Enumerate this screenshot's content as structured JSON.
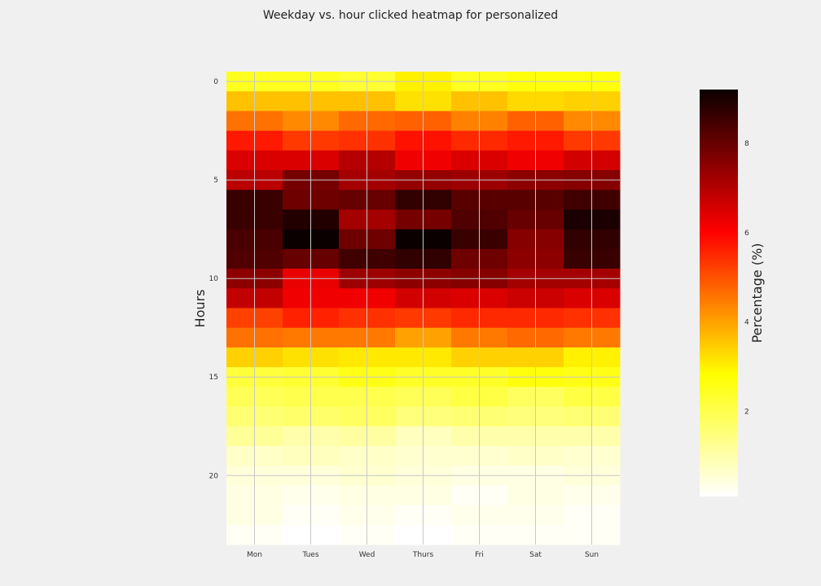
{
  "chart_data": {
    "type": "heatmap",
    "title": "Weekday vs. hour clicked heatmap for personalized",
    "xlabel": "",
    "ylabel": "Hours",
    "colorbar_label": "Percentage (%)",
    "colormap": "hot_r",
    "x_categories": [
      "Mon",
      "Tues",
      "Wed",
      "Thurs",
      "Fri",
      "Sat",
      "Sun"
    ],
    "y_tick_labels": [
      "0",
      "5",
      "10",
      "15",
      "20"
    ],
    "y_tick_values": [
      0,
      5,
      10,
      15,
      20
    ],
    "colorbar_ticks": [
      "2",
      "4",
      "6",
      "8"
    ],
    "colorbar_tick_values": [
      2,
      4,
      6,
      8
    ],
    "vmin": 0.1,
    "vmax": 9.2,
    "grid": true,
    "hours": [
      0,
      1,
      2,
      3,
      4,
      5,
      6,
      7,
      8,
      9,
      10,
      11,
      12,
      13,
      14,
      15,
      16,
      17,
      18,
      19,
      20,
      21,
      22,
      23
    ],
    "values": [
      [
        2.5,
        2.5,
        2.3,
        3.0,
        2.5,
        2.7,
        2.7
      ],
      [
        3.6,
        3.6,
        3.6,
        3.2,
        3.6,
        3.3,
        3.4
      ],
      [
        4.6,
        4.3,
        4.7,
        4.8,
        4.4,
        4.8,
        4.3
      ],
      [
        5.7,
        5.3,
        5.4,
        5.8,
        5.5,
        5.7,
        5.3
      ],
      [
        6.5,
        6.5,
        7.0,
        6.2,
        6.5,
        6.2,
        6.6
      ],
      [
        6.9,
        7.8,
        7.2,
        7.4,
        7.3,
        7.5,
        7.6
      ],
      [
        8.6,
        7.9,
        8.0,
        8.7,
        8.2,
        8.2,
        8.5
      ],
      [
        8.6,
        8.9,
        7.2,
        7.8,
        8.3,
        8.0,
        9.0
      ],
      [
        8.4,
        9.2,
        7.9,
        9.2,
        8.6,
        7.6,
        8.7
      ],
      [
        8.3,
        8.0,
        8.5,
        8.7,
        7.9,
        7.5,
        8.6
      ],
      [
        7.5,
        6.3,
        7.3,
        7.5,
        7.6,
        7.2,
        7.2
      ],
      [
        6.8,
        6.2,
        6.2,
        6.6,
        6.5,
        6.7,
        6.5
      ],
      [
        5.2,
        5.6,
        5.4,
        5.3,
        5.5,
        5.5,
        5.4
      ],
      [
        4.6,
        4.5,
        4.5,
        4.0,
        4.5,
        4.7,
        4.5
      ],
      [
        3.4,
        3.2,
        3.1,
        3.1,
        3.4,
        3.4,
        3.0
      ],
      [
        2.2,
        2.3,
        2.6,
        2.4,
        2.4,
        2.7,
        2.6
      ],
      [
        1.9,
        2.0,
        2.0,
        1.9,
        2.1,
        1.8,
        2.1
      ],
      [
        1.6,
        1.7,
        1.8,
        1.5,
        1.6,
        1.5,
        1.6
      ],
      [
        1.2,
        1.0,
        1.1,
        0.8,
        1.0,
        1.0,
        1.0
      ],
      [
        0.7,
        0.8,
        0.7,
        0.6,
        0.6,
        0.7,
        0.6
      ],
      [
        0.5,
        0.5,
        0.6,
        0.5,
        0.4,
        0.4,
        0.5
      ],
      [
        0.4,
        0.3,
        0.4,
        0.4,
        0.2,
        0.4,
        0.3
      ],
      [
        0.4,
        0.2,
        0.3,
        0.2,
        0.3,
        0.3,
        0.2
      ],
      [
        0.2,
        0.1,
        0.2,
        0.1,
        0.2,
        0.2,
        0.2
      ]
    ]
  }
}
